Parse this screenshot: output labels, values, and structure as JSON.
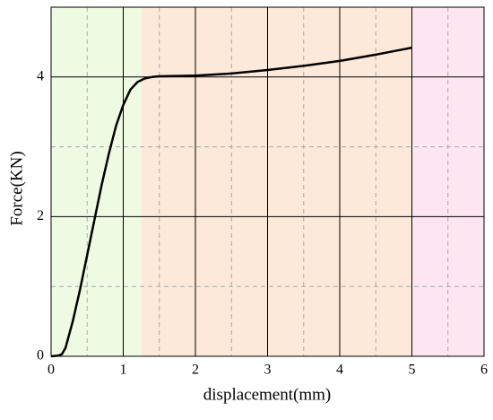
{
  "chart_data": {
    "type": "line",
    "xlabel": "displacement(mm)",
    "ylabel": "Force(KN)",
    "xlim": [
      0,
      6
    ],
    "ylim": [
      0,
      5
    ],
    "xticks": [
      0,
      1,
      2,
      3,
      4,
      5,
      6
    ],
    "yticks": [
      0,
      2,
      4
    ],
    "xminor": [
      0.5,
      1.5,
      2.5,
      3.5,
      4.5,
      5.5
    ],
    "yminor": [
      1,
      3
    ],
    "grid": true,
    "regions": [
      {
        "from": 0,
        "to": 1.25,
        "color": "#eefbe2"
      },
      {
        "from": 1.25,
        "to": 5,
        "color": "#fde9d9"
      },
      {
        "from": 5,
        "to": 6,
        "color": "#fde5f2"
      }
    ],
    "series": [
      {
        "color": "#000000",
        "x": [
          0,
          0.1,
          0.15,
          0.2,
          0.3,
          0.4,
          0.5,
          0.6,
          0.7,
          0.8,
          0.9,
          1.0,
          1.1,
          1.2,
          1.3,
          1.4,
          1.5,
          2,
          2.5,
          3,
          3.5,
          4,
          4.5,
          4.9,
          5
        ],
        "values": [
          0,
          0.01,
          0.03,
          0.12,
          0.5,
          0.95,
          1.45,
          1.95,
          2.45,
          2.9,
          3.3,
          3.6,
          3.82,
          3.93,
          3.98,
          4.0,
          4.01,
          4.02,
          4.05,
          4.1,
          4.16,
          4.23,
          4.32,
          4.4,
          4.42
        ]
      }
    ]
  }
}
